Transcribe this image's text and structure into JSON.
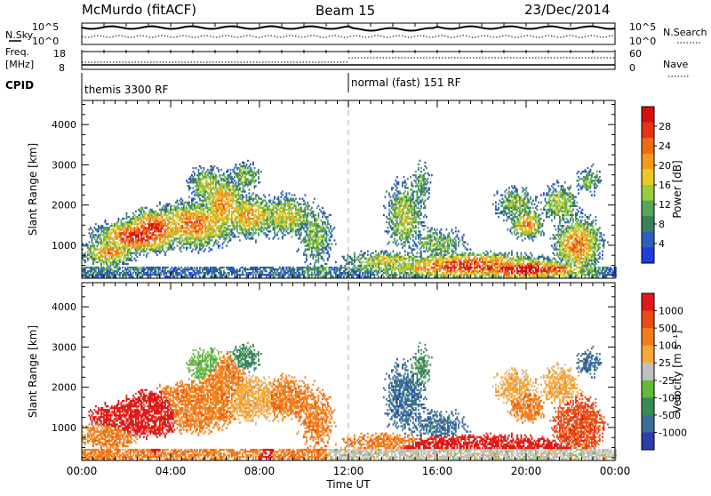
{
  "header": {
    "radar": "McMurdo (fitACF)",
    "beam": "Beam 15",
    "date": "23/Dec/2014"
  },
  "top_panels": {
    "nsky_label": "N.Sky",
    "nsky_ticks": [
      "10^5",
      "10^0"
    ],
    "nsearch_label": "N.Search",
    "nsearch_ticks": [
      "10^5",
      "10^0"
    ],
    "freq_label_line1": "Freq.",
    "freq_label_line2": "[MHz]",
    "freq_ticks": [
      "18",
      "8"
    ],
    "nave_label": "Nave",
    "nave_ticks": [
      "60",
      "0"
    ],
    "cpid_label": "CPID",
    "cpid_segments": [
      {
        "label": "themis 3300 RF",
        "start_hour": 0
      },
      {
        "label": "normal (fast) 151 RF",
        "start_hour": 12
      }
    ]
  },
  "chart_data": [
    {
      "type": "heatmap",
      "name": "power",
      "ylabel": "Slant Range [km]",
      "yticks": [
        "4000",
        "3000",
        "2000",
        "1000"
      ],
      "ylim": [
        180,
        4600
      ],
      "colorbar": {
        "label": "Power [dB]",
        "ticks": [
          "28",
          "24",
          "20",
          "16",
          "12",
          "8",
          "4"
        ],
        "range": [
          0,
          32
        ]
      }
    },
    {
      "type": "heatmap",
      "name": "velocity",
      "ylabel": "Slant Range [km]",
      "yticks": [
        "4000",
        "3000",
        "2000",
        "1000"
      ],
      "ylim": [
        180,
        4600
      ],
      "colorbar": {
        "label": "Velocity [m s⁻¹]",
        "ticks": [
          "1000",
          "500",
          "100",
          "25",
          "-25",
          "-100",
          "-500",
          "-1000"
        ]
      }
    }
  ],
  "xaxis": {
    "label": "Time UT",
    "ticks": [
      "00:00",
      "04:00",
      "08:00",
      "12:00",
      "16:00",
      "20:00",
      "00:00"
    ],
    "range_hours": [
      0,
      24
    ]
  },
  "colors": {
    "power_scale": [
      "#1f3ddc",
      "#2e5fbf",
      "#3b7f5c",
      "#56a35a",
      "#98cc3a",
      "#e8c92a",
      "#f39a1d",
      "#f06a14",
      "#e43412",
      "#d41010"
    ],
    "velocity_scale": [
      "#2d3ea8",
      "#3b6f9a",
      "#3b8a55",
      "#66b83c",
      "#c0c0c0",
      "#f6a83a",
      "#f07e1c",
      "#e84b14",
      "#e01818"
    ],
    "vertical_marker": "#c8c8c8"
  }
}
